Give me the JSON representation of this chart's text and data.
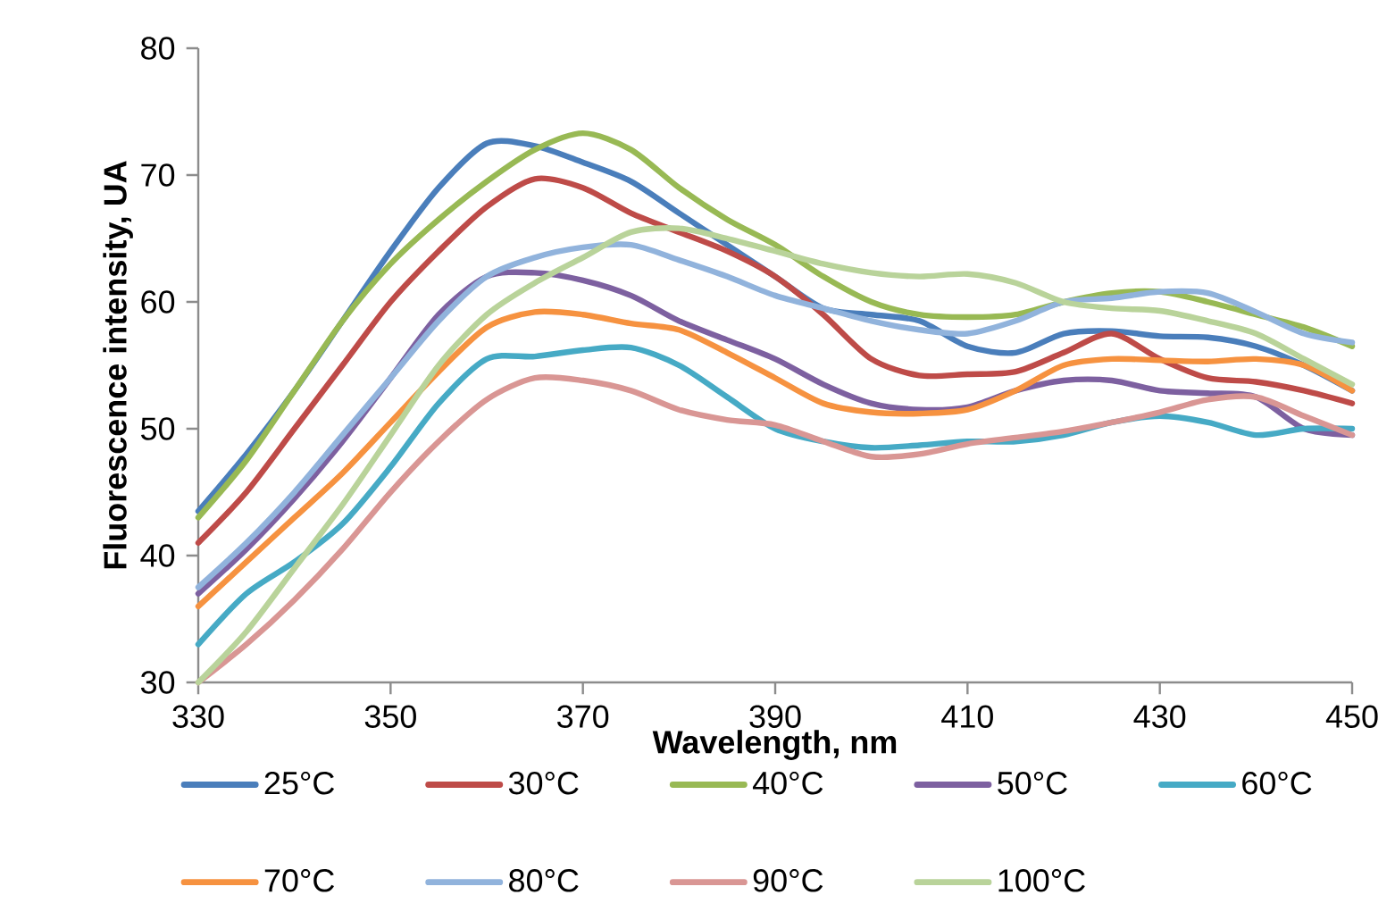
{
  "chart_data": {
    "type": "line",
    "xlabel": "Wavelength, nm",
    "ylabel": "Fluorescence intensity, UA",
    "x": [
      330,
      335,
      340,
      345,
      350,
      355,
      360,
      365,
      370,
      375,
      380,
      385,
      390,
      395,
      400,
      405,
      410,
      415,
      420,
      425,
      430,
      435,
      440,
      445,
      450
    ],
    "xlim": [
      330,
      450
    ],
    "xticks": [
      330,
      350,
      370,
      390,
      410,
      430,
      450
    ],
    "ylim": [
      30,
      80
    ],
    "yticks": [
      30,
      40,
      50,
      60,
      70,
      80
    ],
    "grid": false,
    "legend": "bottom",
    "marker": "none",
    "line_style": "solid",
    "series": [
      {
        "name": "25°C",
        "color": "#4a7ebb",
        "values": [
          43.5,
          48,
          53,
          58.5,
          64,
          69,
          72.5,
          72.3,
          71,
          69.5,
          67,
          64.5,
          62,
          59.5,
          59,
          58.5,
          56.5,
          56,
          57.5,
          57.7,
          57.3,
          57.2,
          56.5,
          55,
          53
        ]
      },
      {
        "name": "30°C",
        "color": "#be4b48",
        "values": [
          41,
          45,
          50,
          55,
          60,
          64,
          67.5,
          69.7,
          69,
          67,
          65.5,
          64,
          62,
          59,
          55.5,
          54.2,
          54.3,
          54.5,
          56,
          57.5,
          55.5,
          54,
          53.7,
          53,
          52
        ]
      },
      {
        "name": "40°C",
        "color": "#98b954",
        "values": [
          43,
          47.5,
          53,
          58.5,
          63,
          66.5,
          69.5,
          72,
          73.3,
          72,
          69,
          66.5,
          64.5,
          62,
          60,
          59,
          58.8,
          59,
          60,
          60.7,
          60.8,
          60,
          59,
          58,
          56.5
        ]
      },
      {
        "name": "50°C",
        "color": "#7d60a0",
        "values": [
          37,
          40.5,
          44.5,
          49,
          54,
          59,
          62,
          62.3,
          61.7,
          60.5,
          58.5,
          57,
          55.5,
          53.5,
          52,
          51.5,
          51.7,
          53,
          53.8,
          53.8,
          53,
          52.8,
          52.5,
          50,
          49.5
        ]
      },
      {
        "name": "60°C",
        "color": "#46aac5",
        "values": [
          33,
          37,
          39.5,
          42.5,
          47,
          52,
          55.5,
          55.7,
          56.2,
          56.4,
          55,
          52.5,
          50,
          49,
          48.5,
          48.7,
          49,
          49,
          49.5,
          50.5,
          51,
          50.5,
          49.5,
          50,
          50
        ]
      },
      {
        "name": "70°C",
        "color": "#f69240",
        "values": [
          36,
          39.5,
          43,
          46.5,
          50.5,
          54.5,
          58,
          59.2,
          59,
          58.3,
          57.8,
          56,
          54,
          52,
          51.3,
          51.2,
          51.5,
          53,
          55,
          55.5,
          55.4,
          55.3,
          55.5,
          55,
          53
        ]
      },
      {
        "name": "80°C",
        "color": "#91b3dc",
        "values": [
          37.5,
          41,
          45,
          49.5,
          54,
          58.5,
          62,
          63.5,
          64.3,
          64.5,
          63.3,
          62,
          60.5,
          59.5,
          58.5,
          57.8,
          57.5,
          58.5,
          60,
          60.3,
          60.8,
          60.7,
          59.2,
          57.5,
          56.8
        ]
      },
      {
        "name": "90°C",
        "color": "#d99694",
        "values": [
          30,
          33,
          36.5,
          40.5,
          45,
          49,
          52.3,
          54,
          53.8,
          53,
          51.5,
          50.7,
          50.3,
          49,
          47.8,
          48,
          48.8,
          49.3,
          49.8,
          50.5,
          51.3,
          52.3,
          52.5,
          51,
          49.5
        ]
      },
      {
        "name": "100°C",
        "color": "#b9d39a",
        "values": [
          30,
          34,
          39,
          44,
          49.5,
          55,
          59,
          61.5,
          63.5,
          65.5,
          65.8,
          65,
          64,
          63,
          62.3,
          62,
          62.2,
          61.5,
          60,
          59.5,
          59.3,
          58.5,
          57.5,
          55.5,
          53.5
        ]
      }
    ]
  }
}
